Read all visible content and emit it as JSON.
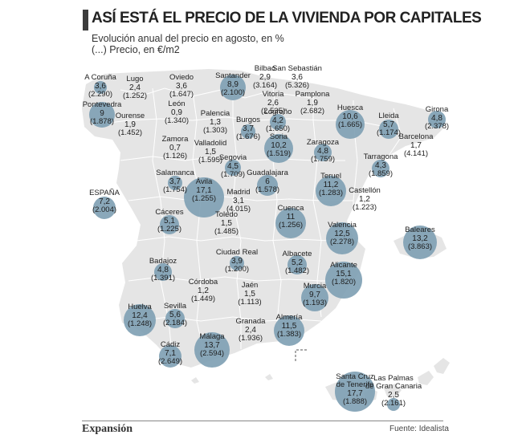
{
  "header": {
    "title": "ASÍ ESTÁ EL PRECIO DE LA VIVIENDA POR CAPITALES",
    "subtitle_line1": "Evolución anual del precio en agosto, en %",
    "subtitle_line2": "(...) Precio, en €/m2"
  },
  "footer": {
    "logo": "Expansión",
    "source": "Fuente: Idealista"
  },
  "colors": {
    "bubble": "#7d9fb3",
    "land": "#e5e5e5",
    "border": "#ffffff",
    "sea": "#ffffff"
  },
  "cities": [
    {
      "name": "A Coruña",
      "change": "3,6",
      "price": "(2.290)",
      "r": 8
    },
    {
      "name": "Lugo",
      "change": "2,4",
      "price": "(1.252)",
      "r": 0
    },
    {
      "name": "Oviedo",
      "change": "3,6",
      "price": "(1.647)",
      "r": 0
    },
    {
      "name": "Santander",
      "change": "8,9",
      "price": "(2.100)",
      "r": 16
    },
    {
      "name": "Bilbao",
      "change": "2,9",
      "price": "(3.164)",
      "r": 0
    },
    {
      "name": "San Sebastián",
      "change": "3,6",
      "price": "(5.326)",
      "r": 0
    },
    {
      "name": "Pontevedra",
      "change": "9",
      "price": "(1.878)",
      "r": 16
    },
    {
      "name": "Ourense",
      "change": "1,9",
      "price": "(1.452)",
      "r": 0
    },
    {
      "name": "León",
      "change": "0,9",
      "price": "(1.340)",
      "r": 0
    },
    {
      "name": "Palencia",
      "change": "1,3",
      "price": "(1.303)",
      "r": 0
    },
    {
      "name": "Burgos",
      "change": "3,7",
      "price": "(1.676)",
      "r": 9
    },
    {
      "name": "Vitoria",
      "change": "2,6",
      "price": "(2.535)",
      "r": 0
    },
    {
      "name": "Logroño",
      "change": "4,2",
      "price": "(1.650)",
      "r": 10
    },
    {
      "name": "Pamplona",
      "change": "1,9",
      "price": "(2.682)",
      "r": 0
    },
    {
      "name": "Huesca",
      "change": "10,6",
      "price": "(1.665)",
      "r": 18
    },
    {
      "name": "Lleida",
      "change": "5,7",
      "price": "(1.174)",
      "r": 12
    },
    {
      "name": "Girona",
      "change": "4,8",
      "price": "(2.378)",
      "r": 11
    },
    {
      "name": "Barcelona",
      "change": "1,7",
      "price": "(4.141)",
      "r": 0
    },
    {
      "name": "Tarragona",
      "change": "4,3",
      "price": "(1.859)",
      "r": 11
    },
    {
      "name": "Zamora",
      "change": "0,7",
      "price": "(1.126)",
      "r": 0
    },
    {
      "name": "Valladolid",
      "change": "1,5",
      "price": "(1.595)",
      "r": 0
    },
    {
      "name": "Soria",
      "change": "10,2",
      "price": "(1.519)",
      "r": 18
    },
    {
      "name": "Zaragoza",
      "change": "4,8",
      "price": "(1.759)",
      "r": 11
    },
    {
      "name": "Segovia",
      "change": "4,5",
      "price": "(1.709)",
      "r": 10
    },
    {
      "name": "Salamanca",
      "change": "3,7",
      "price": "(1.754)",
      "r": 9
    },
    {
      "name": "Ávila",
      "change": "17,1",
      "price": "(1.255)",
      "r": 25
    },
    {
      "name": "Guadalajara",
      "change": "6",
      "price": "(1.578)",
      "r": 13
    },
    {
      "name": "Teruel",
      "change": "11,2",
      "price": "(1.283)",
      "r": 19
    },
    {
      "name": "Castellón",
      "change": "1,2",
      "price": "(1.223)",
      "r": 0
    },
    {
      "name": "Madrid",
      "change": "3,1",
      "price": "(4.015)",
      "r": 0
    },
    {
      "name": "ESPAÑA",
      "change": "7,2",
      "price": "(2.004)",
      "r": 14
    },
    {
      "name": "Cáceres",
      "change": "5,1",
      "price": "(1.225)",
      "r": 12
    },
    {
      "name": "Toledo",
      "change": "1,5",
      "price": "(1.485)",
      "r": 0
    },
    {
      "name": "Cuenca",
      "change": "11",
      "price": "(1.256)",
      "r": 19
    },
    {
      "name": "Valencia",
      "change": "12,5",
      "price": "(2.278)",
      "r": 20
    },
    {
      "name": "Baleares",
      "change": "13,2",
      "price": "(3.863)",
      "r": 21
    },
    {
      "name": "Ciudad Real",
      "change": "3,9",
      "price": "(1.200)",
      "r": 9
    },
    {
      "name": "Albacete",
      "change": "5,2",
      "price": "(1.482)",
      "r": 12
    },
    {
      "name": "Alicante",
      "change": "15,1",
      "price": "(1.820)",
      "r": 23
    },
    {
      "name": "Badajoz",
      "change": "4,8",
      "price": "(1.391)",
      "r": 11
    },
    {
      "name": "Córdoba",
      "change": "1,2",
      "price": "(1.449)",
      "r": 0
    },
    {
      "name": "Jaén",
      "change": "1,5",
      "price": "(1.113)",
      "r": 0
    },
    {
      "name": "Murcia",
      "change": "9,7",
      "price": "(1.193)",
      "r": 17
    },
    {
      "name": "Huelva",
      "change": "12,4",
      "price": "(1.248)",
      "r": 20
    },
    {
      "name": "Sevilla",
      "change": "5,6",
      "price": "(2.184)",
      "r": 12
    },
    {
      "name": "Granada",
      "change": "2,4",
      "price": "(1.936)",
      "r": 0
    },
    {
      "name": "Almería",
      "change": "11,5",
      "price": "(1.383)",
      "r": 19
    },
    {
      "name": "Málaga",
      "change": "13,7",
      "price": "(2.594)",
      "r": 22
    },
    {
      "name": "Cádiz",
      "change": "7,1",
      "price": "(2.649)",
      "r": 14
    },
    {
      "name": "Santa Cruz de Tenerife",
      "change": "17,7",
      "price": "(1.888)",
      "r": 25
    },
    {
      "name": "Las Palmas de Gran Canaria",
      "change": "2,5",
      "price": "(2.161)",
      "r": 8
    }
  ]
}
